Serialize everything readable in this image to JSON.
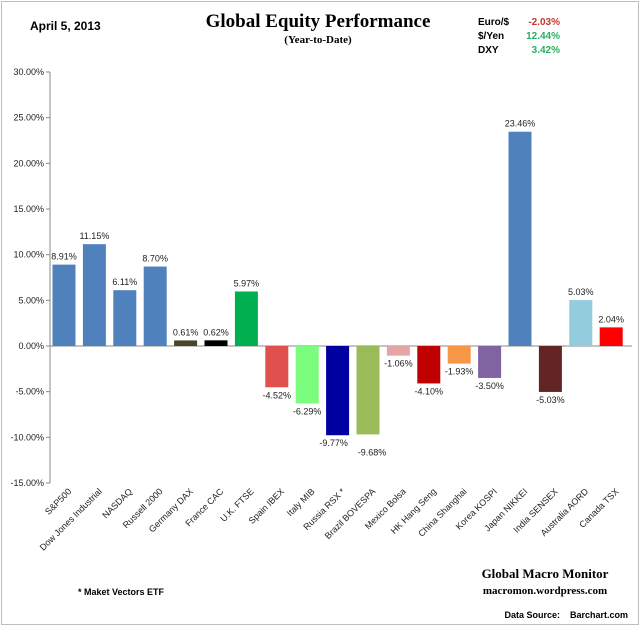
{
  "header": {
    "date": "April 5, 2013",
    "fx": [
      {
        "label": "Euro/$",
        "value": "-2.03%",
        "color": "#c0392b"
      },
      {
        "label": "$/Yen",
        "value": "12.44%",
        "color": "#27ae60"
      },
      {
        "label": "DXY",
        "value": "3.42%",
        "color": "#27ae60"
      }
    ]
  },
  "footer": {
    "note": "* Maket Vectors ETF",
    "brand": "Global Macro Monitor",
    "site": "macromon.wordpress.com",
    "source_label": "Data Source:",
    "source": "Barchart.com"
  },
  "chart_data": {
    "type": "bar",
    "title": "Global Equity Performance",
    "subtitle": "(Year-to-Date)",
    "ylim": [
      -15,
      30
    ],
    "yticks": [
      "-15.00%",
      "-10.00%",
      "-5.00%",
      "0.00%",
      "5.00%",
      "10.00%",
      "15.00%",
      "20.00%",
      "25.00%",
      "30.00%"
    ],
    "grid": false,
    "categories": [
      "S&P500",
      "Dow Jones Industrial",
      "NASDAQ",
      "Russell 2000",
      "Germany DAX",
      "France CAC",
      "U.K. FTSE",
      "Spain IBEX",
      "Italy  MIB",
      "Russia RSX *",
      "Brazil BOVESPA",
      "Mexico Bolsa",
      "HK Hang Seng",
      "China Shanghai",
      "Korea KOSPI",
      "Japan NIKKEI",
      "India SENSEX",
      "Australia AORD",
      "Canada TSX"
    ],
    "values": [
      8.91,
      11.15,
      6.11,
      8.7,
      0.61,
      0.62,
      5.97,
      -4.52,
      -6.29,
      -9.77,
      -9.68,
      -1.06,
      -4.1,
      -1.93,
      -3.5,
      23.46,
      -5.03,
      5.03,
      2.04
    ],
    "labels": [
      "8.91%",
      "11.15%",
      "6.11%",
      "8.70%",
      "0.61%",
      "0.62%",
      "5.97%",
      "-4.52%",
      "-6.29%",
      "-9.77%",
      "-9.68%",
      "-1.06%",
      "-4.10%",
      "-1.93%",
      "-3.50%",
      "23.46%",
      "-5.03%",
      "5.03%",
      "2.04%"
    ],
    "colors": [
      "#4f81bd",
      "#4f81bd",
      "#4f81bd",
      "#4f81bd",
      "#4a452a",
      "#000000",
      "#00b050",
      "#e0504c",
      "#7cfc7c",
      "#0000a0",
      "#9bbb59",
      "#e6a5a5",
      "#c00000",
      "#f79646",
      "#8064a2",
      "#4f81bd",
      "#632523",
      "#93cddd",
      "#ff0000"
    ]
  }
}
